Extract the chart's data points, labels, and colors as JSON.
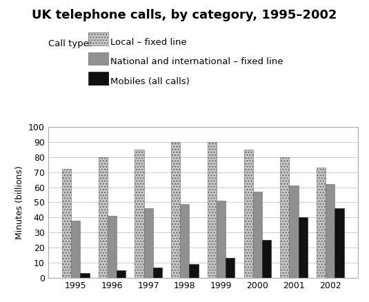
{
  "title": "UK telephone calls, by category, 1995–2002",
  "ylabel": "Minutes (billions)",
  "years": [
    1995,
    1996,
    1997,
    1998,
    1999,
    2000,
    2001,
    2002
  ],
  "local_fixed": [
    72,
    80,
    85,
    90,
    90,
    85,
    80,
    73
  ],
  "national_fixed": [
    38,
    41,
    46,
    49,
    51,
    57,
    61,
    62
  ],
  "mobiles": [
    3,
    5,
    7,
    9,
    13,
    25,
    40,
    46
  ],
  "ylim": [
    0,
    100
  ],
  "yticks": [
    0,
    10,
    20,
    30,
    40,
    50,
    60,
    70,
    80,
    90,
    100
  ],
  "legend_labels": [
    "Local – fixed line",
    "National and international – fixed line",
    "Mobiles (all calls)"
  ],
  "legend_title": "Call type:",
  "local_color": "#c8c8c8",
  "national_color": "#909090",
  "mobile_color": "#111111",
  "background_color": "#ffffff",
  "bar_width": 0.25,
  "title_fontsize": 13,
  "axis_fontsize": 9,
  "legend_fontsize": 9.5,
  "grid_color": "#cccccc"
}
